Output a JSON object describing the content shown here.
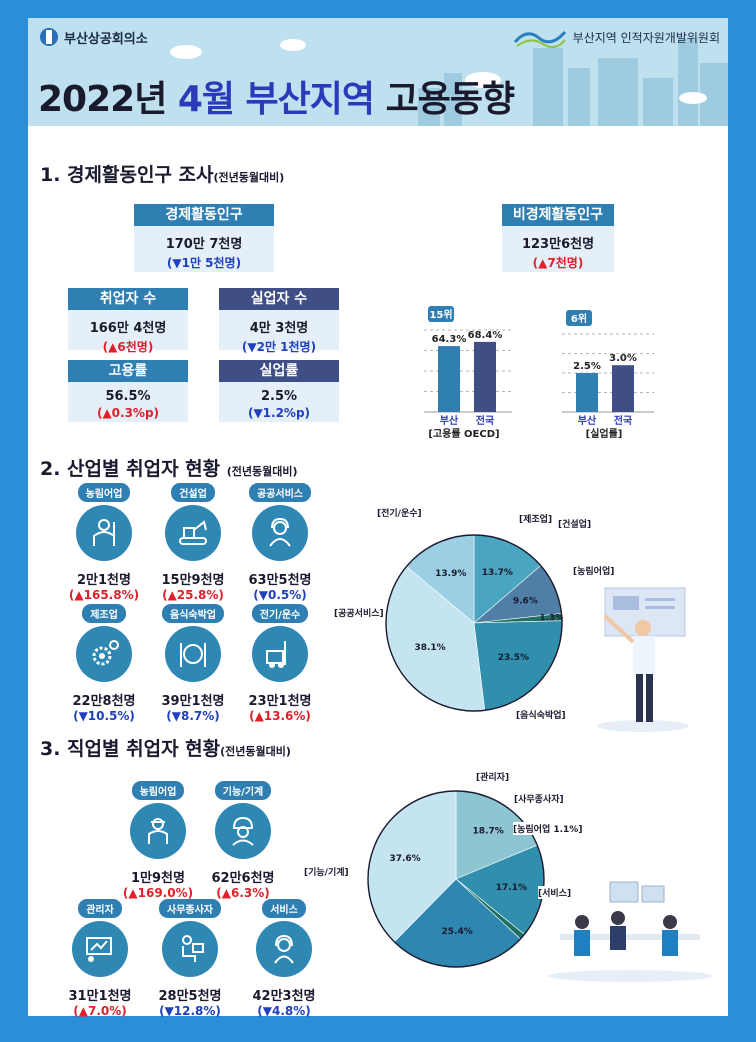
{
  "header": {
    "org_left": "부산상공회의소",
    "org_right": "부산지역 인적자원개발위원회",
    "title_a": "2022년 ",
    "title_b": "4월 부산지역",
    "title_c": " 고용동향"
  },
  "sec1": {
    "num": "1. 경제활동인구 조사",
    "note": "(전년동월대비)",
    "econ": {
      "label": "경제활동인구",
      "value": "170만 7천명",
      "change": "(▼1만 5천명)"
    },
    "nonecon": {
      "label": "비경제활동인구",
      "value": "123만6천명",
      "change": "(▲7천명)"
    },
    "employed": {
      "label": "취업자 수",
      "value": "166만 4천명",
      "change": "(▲6천명)"
    },
    "unemployed": {
      "label": "실업자 수",
      "value": "4만 3천명",
      "change": "(▼2만 1천명)"
    },
    "emp_rate": {
      "label": "고용률",
      "value": "56.5%",
      "change": "(▲0.3%p)"
    },
    "unemp_rate": {
      "label": "실업률",
      "value": "2.5%",
      "change": "(▼1.2%p)"
    }
  },
  "sec2": {
    "num": "2. 산업별 취업자 현황",
    "note": "(전년동월대비)",
    "items": [
      {
        "tag": "농림어업",
        "value": "2만1천명",
        "change": "(▲165.8%)"
      },
      {
        "tag": "건설업",
        "value": "15만9천명",
        "change": "(▲25.8%)"
      },
      {
        "tag": "공공서비스",
        "value": "63만5천명",
        "change": "(▼0.5%)"
      },
      {
        "tag": "제조업",
        "value": "22만8천명",
        "change": "(▼10.5%)"
      },
      {
        "tag": "음식숙박업",
        "value": "39만1천명",
        "change": "(▼8.7%)"
      },
      {
        "tag": "전기/운수",
        "value": "23만1천명",
        "change": "(▲13.6%)"
      }
    ]
  },
  "sec3": {
    "num": "3. 직업별 취업자 현황",
    "note": "(전년동월대비)",
    "items": [
      {
        "tag": "농림어업",
        "value": "1만9천명",
        "change": "(▲169.0%)"
      },
      {
        "tag": "기능/기계",
        "value": "62만6천명",
        "change": "(▲6.3%)"
      },
      {
        "tag": "관리자",
        "value": "31만1천명",
        "change": "(▲7.0%)"
      },
      {
        "tag": "사무종사자",
        "value": "28만5천명",
        "change": "(▼12.8%)"
      },
      {
        "tag": "서비스",
        "value": "42만3천명",
        "change": "(▼4.8%)"
      }
    ]
  },
  "colors": {
    "up": "#e0202a",
    "down": "#2040c0",
    "blue": "#2f7fb2",
    "navy": "#3f4f86"
  },
  "chart_data": [
    {
      "type": "bar",
      "categories": [
        "부산",
        "전국"
      ],
      "values": [
        64.3,
        68.4
      ],
      "value_labels": [
        "64.3%",
        "68.4%"
      ],
      "xlabel": "[고용률 OECD]",
      "badge": "15위",
      "colors": [
        "#2f7fb2",
        "#3f4f86"
      ]
    },
    {
      "type": "bar",
      "categories": [
        "부산",
        "전국"
      ],
      "values": [
        2.5,
        3.0
      ],
      "value_labels": [
        "2.5%",
        "3.0%"
      ],
      "xlabel": "[실업률]",
      "badge": "6위",
      "colors": [
        "#2f7fb2",
        "#3f4f86"
      ]
    },
    {
      "type": "pie",
      "title": "",
      "labels": [
        "[제조업]",
        "[건설업]",
        "[농림어업]",
        "[음식숙박업]",
        "[공공서비스]",
        "[전기/운수]"
      ],
      "values": [
        13.7,
        9.6,
        1.3,
        23.5,
        38.1,
        13.9
      ],
      "value_labels": [
        "13.7%",
        "9.6%",
        "1.3%",
        "23.5%",
        "38.1%",
        "13.9%"
      ],
      "colors": [
        "#4aa5c1",
        "#4f7fa6",
        "#1f6f63",
        "#2f8fac",
        "#c4e4f2",
        "#9ccfe3"
      ]
    },
    {
      "type": "pie",
      "title": "",
      "labels": [
        "[관리자]",
        "[사무종사자]",
        "[농림어업 1.1%]",
        "[서비스]",
        "[기능/기계]"
      ],
      "values": [
        18.7,
        17.1,
        1.1,
        25.4,
        37.6
      ],
      "value_labels": [
        "18.7%",
        "17.1%",
        "",
        "25.4%",
        "37.6%"
      ],
      "colors": [
        "#8ec5d2",
        "#2f8fac",
        "#1f6f63",
        "#2e87b0",
        "#c4e4f2"
      ]
    }
  ]
}
